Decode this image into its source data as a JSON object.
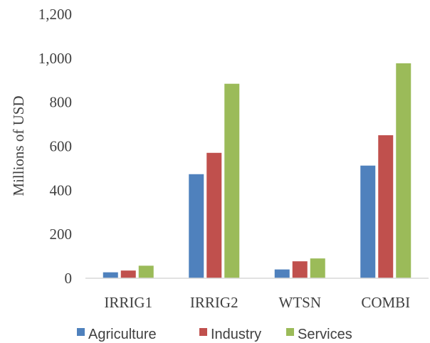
{
  "chart_data": {
    "type": "bar",
    "title": "",
    "xlabel": "",
    "ylabel": "Millions of USD",
    "categories": [
      "IRRIG1",
      "IRRIG2",
      "WTSN",
      "COMBI"
    ],
    "series": [
      {
        "name": "Agriculture",
        "color": "#4F81BD",
        "values": [
          27,
          473,
          40,
          512
        ]
      },
      {
        "name": "Industry",
        "color": "#C0504D",
        "values": [
          35,
          570,
          77,
          650
        ]
      },
      {
        "name": "Services",
        "color": "#9BBB59",
        "values": [
          57,
          884,
          90,
          977
        ]
      }
    ],
    "ylim": [
      0,
      1200
    ],
    "yticks": [
      0,
      200,
      400,
      600,
      800,
      1000,
      1200
    ],
    "ytick_labels": [
      "0",
      "200",
      "400",
      "600",
      "800",
      "1,000",
      "1,200"
    ],
    "grid": false,
    "legend_position": "bottom"
  }
}
